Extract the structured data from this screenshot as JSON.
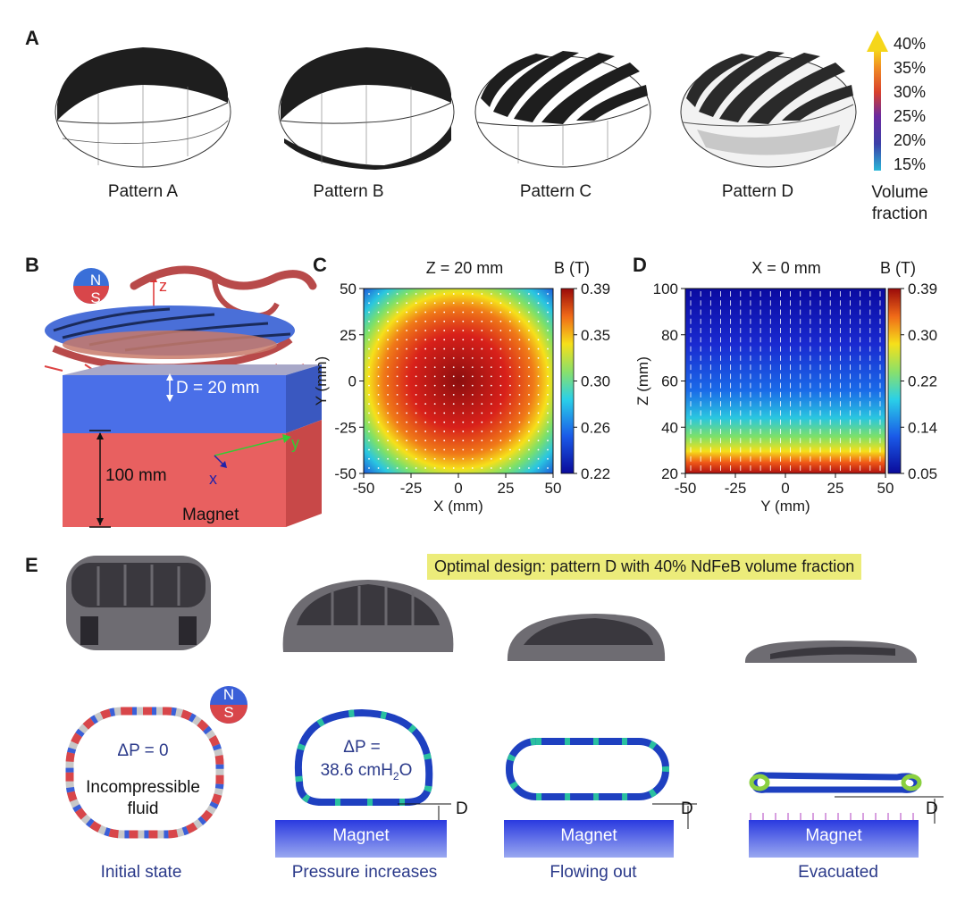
{
  "panels": {
    "a": {
      "letter": "A",
      "patterns": [
        "Pattern A",
        "Pattern B",
        "Pattern C",
        "Pattern D"
      ],
      "colorbar": {
        "ticks": [
          "40%",
          "35%",
          "30%",
          "25%",
          "20%",
          "15%"
        ],
        "label_line1": "Volume",
        "label_line2": "fraction"
      }
    },
    "b": {
      "letter": "B",
      "z_label": "z",
      "y_label": "y",
      "x_label": "x",
      "n_label": "N",
      "s_label": "S",
      "distance_label": "D = 20 mm",
      "height_label": "100 mm",
      "magnet_label": "Magnet"
    },
    "c": {
      "letter": "C",
      "title": "Z = 20 mm",
      "cbar_title": "B (T)"
    },
    "d": {
      "letter": "D",
      "title": "X = 0 mm",
      "cbar_title": "B (T)"
    },
    "e": {
      "letter": "E",
      "highlight": "Optimal design: pattern D with 40% NdFeB volume fraction",
      "n_label": "N",
      "s_label": "S",
      "dp_initial": "ΔP = 0",
      "fluid_line1": "Incompressible",
      "fluid_line2": "fluid",
      "dp_pressure_line1": "ΔP =",
      "dp_pressure_value": "38.6 cmH",
      "dp_pressure_sub": "2",
      "dp_pressure_unit": "O",
      "d_label": "D",
      "magnet_label": "Magnet",
      "states": [
        "Initial state",
        "Pressure increases",
        "Flowing out",
        "Evacuated"
      ]
    }
  },
  "chart_data": [
    {
      "type": "heatmap",
      "title": "Z = 20 mm",
      "xlabel": "X (mm)",
      "ylabel": "Y (mm)",
      "x_ticks": [
        -50,
        -25,
        0,
        25,
        50
      ],
      "y_ticks": [
        50,
        25,
        0,
        -25,
        -50
      ],
      "xlim": [
        -50,
        50
      ],
      "ylim": [
        -50,
        50
      ],
      "colorbar_title": "B (T)",
      "colorbar_ticks": [
        0.39,
        0.35,
        0.3,
        0.26,
        0.22
      ],
      "colorbar_range": [
        0.22,
        0.39
      ]
    },
    {
      "type": "heatmap",
      "title": "X = 0 mm",
      "xlabel": "Y (mm)",
      "ylabel": "Z (mm)",
      "x_ticks": [
        -50,
        -25,
        0,
        25,
        50
      ],
      "y_ticks": [
        100,
        80,
        60,
        40,
        20
      ],
      "xlim": [
        -50,
        50
      ],
      "ylim": [
        20,
        100
      ],
      "colorbar_title": "B (T)",
      "colorbar_ticks": [
        0.39,
        0.3,
        0.22,
        0.14,
        0.05
      ],
      "colorbar_range": [
        0.05,
        0.39
      ]
    }
  ],
  "colors": {
    "accent_text": "#2b3a8a",
    "magnet": "#3c4fe0",
    "north": "#3a6fd8",
    "south": "#d8464a"
  }
}
